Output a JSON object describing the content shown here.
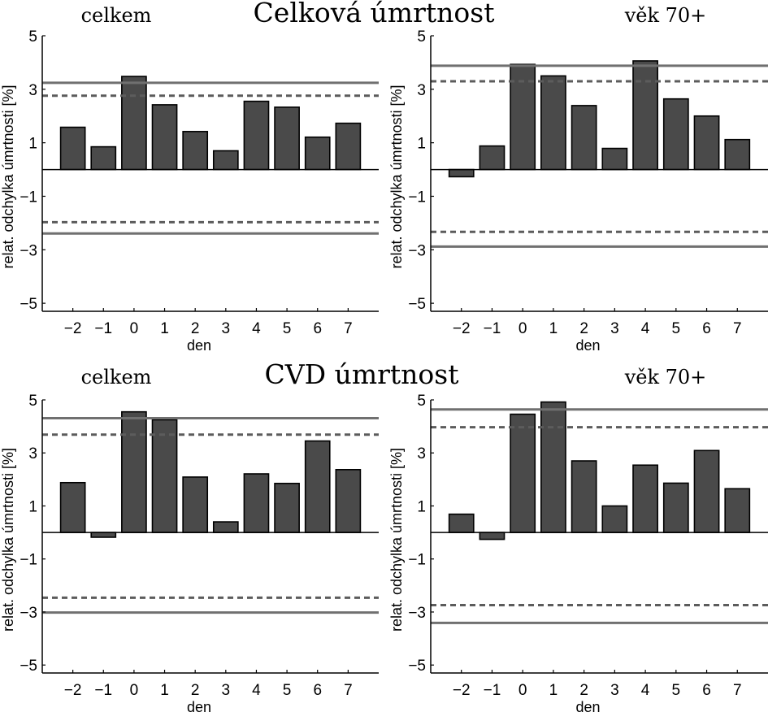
{
  "chart_data": [
    {
      "type": "bar",
      "group_title": "Celková úmrtnost",
      "title": "celkem",
      "xlabel": "den",
      "ylabel": "relat. odchylka úmrtnosti [%]",
      "categories": [
        "-2",
        "-1",
        "0",
        "1",
        "2",
        "3",
        "4",
        "5",
        "6",
        "7"
      ],
      "values": [
        1.58,
        0.85,
        3.48,
        2.42,
        1.42,
        0.7,
        2.55,
        2.33,
        1.21,
        1.73
      ],
      "ylim": [
        -5.3,
        5
      ],
      "xlim": [
        -3,
        8
      ],
      "yticks": [
        -5,
        -3,
        -1,
        1,
        3,
        5
      ],
      "reference_lines": {
        "solid": {
          "upper": 3.24,
          "lower": -2.39
        },
        "dashed": {
          "upper": 2.76,
          "lower": -1.97
        }
      },
      "grid": false
    },
    {
      "type": "bar",
      "group_title": "Celková úmrtnost",
      "title": "věk 70+",
      "xlabel": "den",
      "ylabel": "relat. odchylka úmrtnosti [%]",
      "categories": [
        "-2",
        "-1",
        "0",
        "1",
        "2",
        "3",
        "4",
        "5",
        "6",
        "7"
      ],
      "values": [
        -0.27,
        0.88,
        3.93,
        3.5,
        2.39,
        0.79,
        4.06,
        2.64,
        2.0,
        1.12
      ],
      "ylim": [
        -5.3,
        5
      ],
      "xlim": [
        -3,
        8
      ],
      "yticks": [
        -5,
        -3,
        -1,
        1,
        3,
        5
      ],
      "reference_lines": {
        "solid": {
          "upper": 3.88,
          "lower": -2.88
        },
        "dashed": {
          "upper": 3.3,
          "lower": -2.33
        }
      },
      "grid": false
    },
    {
      "type": "bar",
      "group_title": "CVD úmrtnost",
      "title": "celkem",
      "xlabel": "den",
      "ylabel": "relat. odchylka úmrtnosti [%]",
      "categories": [
        "-2",
        "-1",
        "0",
        "1",
        "2",
        "3",
        "4",
        "5",
        "6",
        "7"
      ],
      "values": [
        1.88,
        -0.18,
        4.55,
        4.25,
        2.09,
        0.4,
        2.21,
        1.85,
        3.45,
        2.37
      ],
      "ylim": [
        -5.3,
        5
      ],
      "xlim": [
        -3,
        8
      ],
      "yticks": [
        -5,
        -3,
        -1,
        1,
        3,
        5
      ],
      "reference_lines": {
        "solid": {
          "upper": 4.31,
          "lower": -3.02
        },
        "dashed": {
          "upper": 3.69,
          "lower": -2.46
        }
      },
      "grid": false
    },
    {
      "type": "bar",
      "group_title": "CVD úmrtnost",
      "title": "věk 70+",
      "xlabel": "den",
      "ylabel": "relat. odchylka úmrtnosti [%]",
      "categories": [
        "-2",
        "-1",
        "0",
        "1",
        "2",
        "3",
        "4",
        "5",
        "6",
        "7"
      ],
      "values": [
        0.69,
        -0.26,
        4.46,
        4.92,
        2.7,
        1.0,
        2.54,
        1.86,
        3.09,
        1.65
      ],
      "ylim": [
        -5.3,
        5
      ],
      "xlim": [
        -3,
        8
      ],
      "yticks": [
        -5,
        -3,
        -1,
        1,
        3,
        5
      ],
      "reference_lines": {
        "solid": {
          "upper": 4.64,
          "lower": -3.41
        },
        "dashed": {
          "upper": 3.97,
          "lower": -2.74
        }
      },
      "grid": false
    }
  ],
  "figure": {
    "row_titles": [
      "Celková úmrtnost",
      "CVD úmrtnost"
    ]
  },
  "colors": {
    "bar_fill": "#4a4a4a",
    "bar_edge": "#000000",
    "solid_line": "#707070",
    "dashed_line": "#5c5c5c",
    "axis": "#000000"
  }
}
